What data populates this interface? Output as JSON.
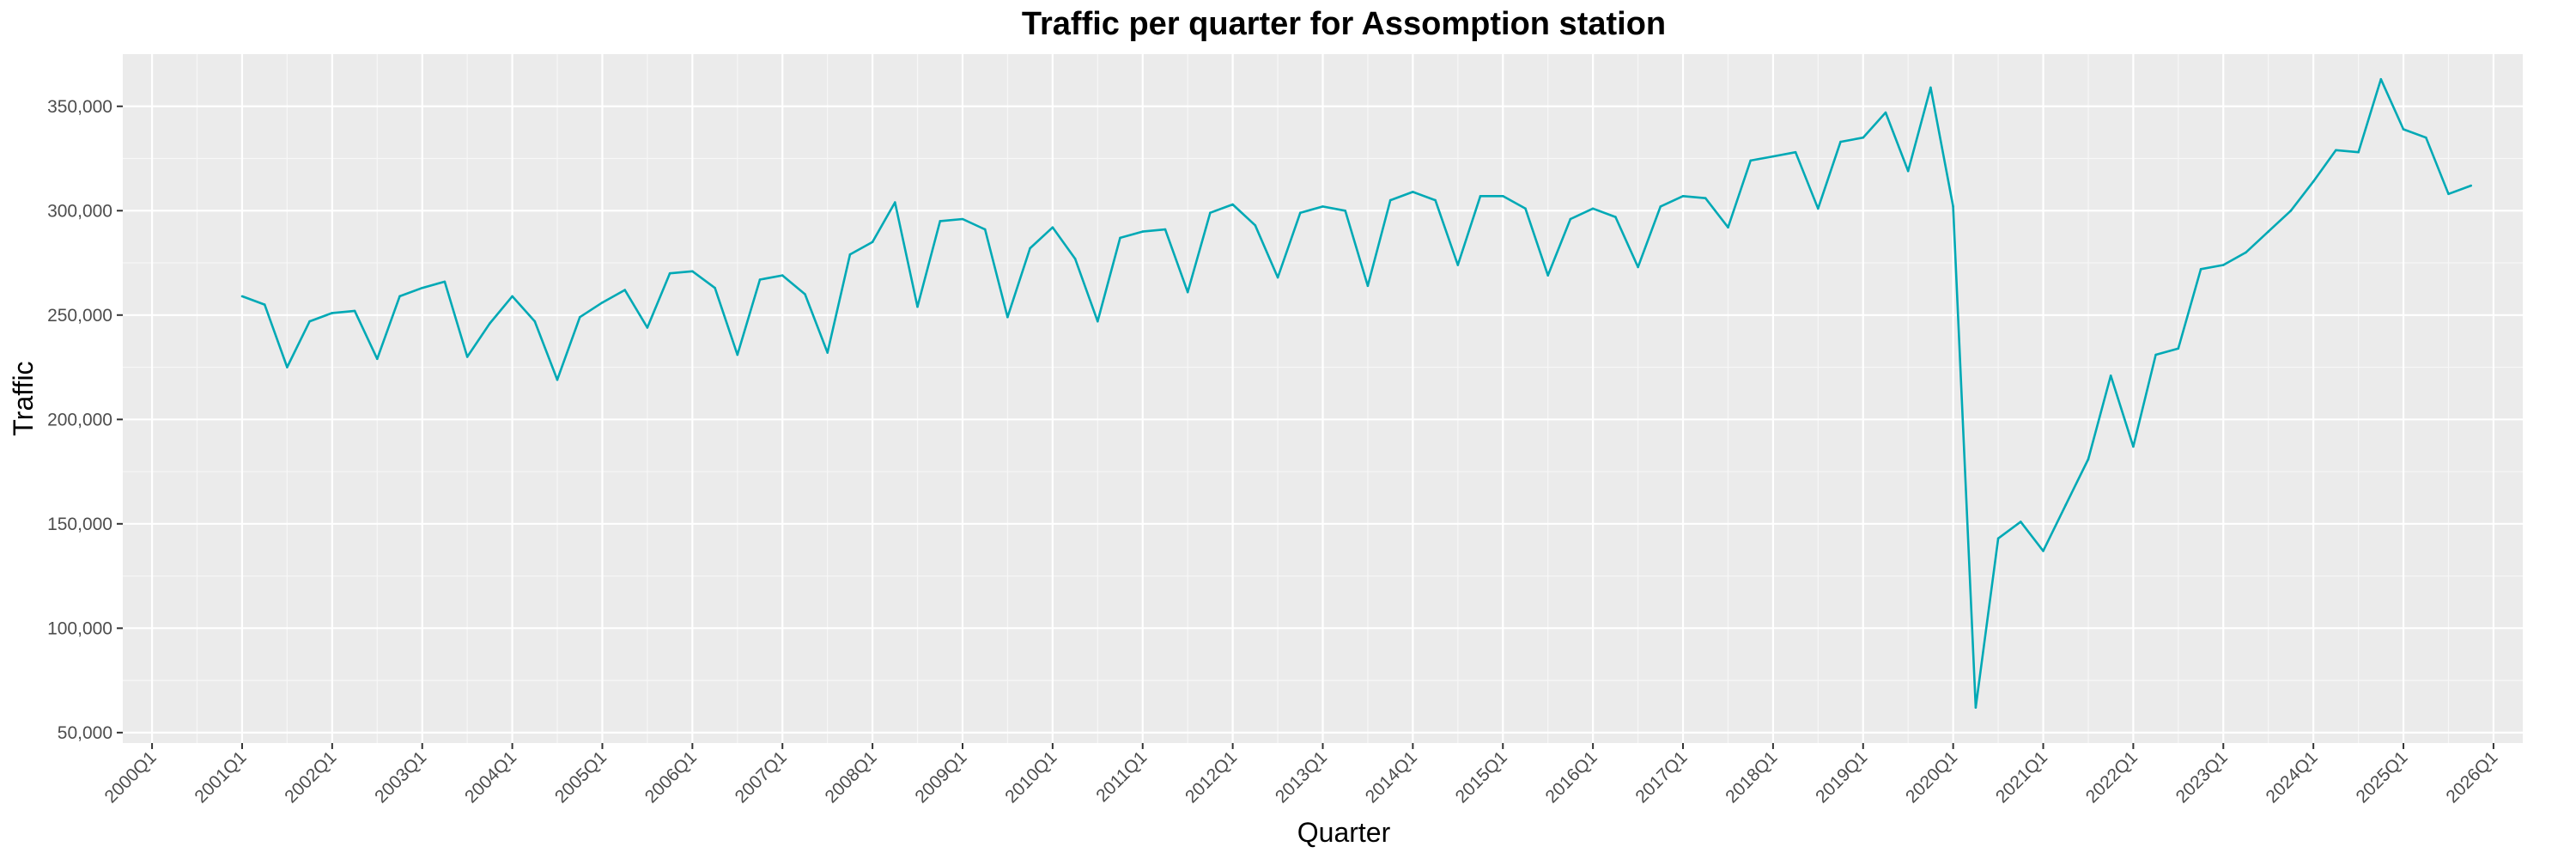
{
  "chart_data": {
    "type": "line",
    "title": "Traffic per quarter for Assomption station",
    "xlabel": "Quarter",
    "ylabel": "Traffic",
    "ylim": [
      45000,
      375000
    ],
    "y_ticks": [
      50000,
      100000,
      150000,
      200000,
      250000,
      300000,
      350000
    ],
    "y_tick_labels": [
      "50,000",
      "100,000",
      "150,000",
      "200,000",
      "250,000",
      "300,000",
      "350,000"
    ],
    "x_tick_labels": [
      "2000Q1",
      "2001Q1",
      "2002Q1",
      "2003Q1",
      "2004Q1",
      "2005Q1",
      "2006Q1",
      "2007Q1",
      "2008Q1",
      "2009Q1",
      "2010Q1",
      "2011Q1",
      "2012Q1",
      "2013Q1",
      "2014Q1",
      "2015Q1",
      "2016Q1",
      "2017Q1",
      "2018Q1",
      "2019Q1",
      "2020Q1",
      "2021Q1",
      "2022Q1",
      "2023Q1",
      "2024Q1",
      "2025Q1",
      "2026Q1"
    ],
    "grid": true,
    "line_color": "#00a9b5",
    "panel_color": "#ebebeb",
    "series": [
      {
        "x": [
          "2001Q1",
          "2001Q2",
          "2001Q3",
          "2001Q4",
          "2002Q1",
          "2002Q2",
          "2002Q3",
          "2002Q4",
          "2003Q1",
          "2003Q2",
          "2003Q3",
          "2003Q4",
          "2004Q1",
          "2004Q2",
          "2004Q3",
          "2004Q4",
          "2005Q1",
          "2005Q2",
          "2005Q3",
          "2005Q4",
          "2006Q1",
          "2006Q2",
          "2006Q3",
          "2006Q4",
          "2007Q1",
          "2007Q2",
          "2007Q3",
          "2007Q4",
          "2008Q1",
          "2008Q2",
          "2008Q3",
          "2008Q4",
          "2009Q1",
          "2009Q2",
          "2009Q3",
          "2009Q4",
          "2010Q1",
          "2010Q2",
          "2010Q3",
          "2010Q4",
          "2011Q1",
          "2011Q2",
          "2011Q3",
          "2011Q4",
          "2012Q1",
          "2012Q2",
          "2012Q3",
          "2012Q4",
          "2013Q1",
          "2013Q2",
          "2013Q3",
          "2013Q4",
          "2014Q1",
          "2014Q2",
          "2014Q3",
          "2014Q4",
          "2015Q1",
          "2015Q2",
          "2015Q3",
          "2015Q4",
          "2016Q1",
          "2016Q2",
          "2016Q3",
          "2016Q4",
          "2017Q1",
          "2017Q2",
          "2017Q3",
          "2017Q4",
          "2018Q1",
          "2018Q2",
          "2018Q3",
          "2018Q4",
          "2019Q1",
          "2019Q2",
          "2019Q3",
          "2019Q4",
          "2020Q1",
          "2020Q2",
          "2020Q3",
          "2020Q4",
          "2021Q1",
          "2021Q2",
          "2021Q3",
          "2021Q4",
          "2022Q1",
          "2022Q2",
          "2022Q3",
          "2022Q4",
          "2023Q1",
          "2023Q2",
          "2023Q3",
          "2023Q4",
          "2024Q1",
          "2024Q2",
          "2024Q3",
          "2024Q4",
          "2025Q1",
          "2025Q2",
          "2025Q3",
          "2025Q4"
        ],
        "values": [
          259000,
          255000,
          225000,
          247000,
          251000,
          252000,
          229000,
          259000,
          263000,
          266000,
          230000,
          246000,
          259000,
          247000,
          219000,
          249000,
          256000,
          262000,
          244000,
          270000,
          271000,
          263000,
          231000,
          267000,
          269000,
          260000,
          232000,
          279000,
          285000,
          304000,
          254000,
          295000,
          296000,
          291000,
          249000,
          282000,
          292000,
          277000,
          247000,
          287000,
          290000,
          291000,
          261000,
          299000,
          303000,
          293000,
          268000,
          299000,
          302000,
          300000,
          264000,
          305000,
          309000,
          305000,
          274000,
          307000,
          307000,
          301000,
          269000,
          296000,
          301000,
          297000,
          273000,
          302000,
          307000,
          306000,
          292000,
          324000,
          326000,
          328000,
          301000,
          333000,
          335000,
          347000,
          319000,
          359000,
          302000,
          62000,
          143000,
          151000,
          137000,
          159000,
          181000,
          221000,
          187000,
          231000,
          234000,
          272000,
          274000,
          280000,
          290000,
          300000,
          314000,
          329000,
          328000,
          363000,
          339000,
          335000,
          308000,
          312000
        ]
      }
    ]
  }
}
